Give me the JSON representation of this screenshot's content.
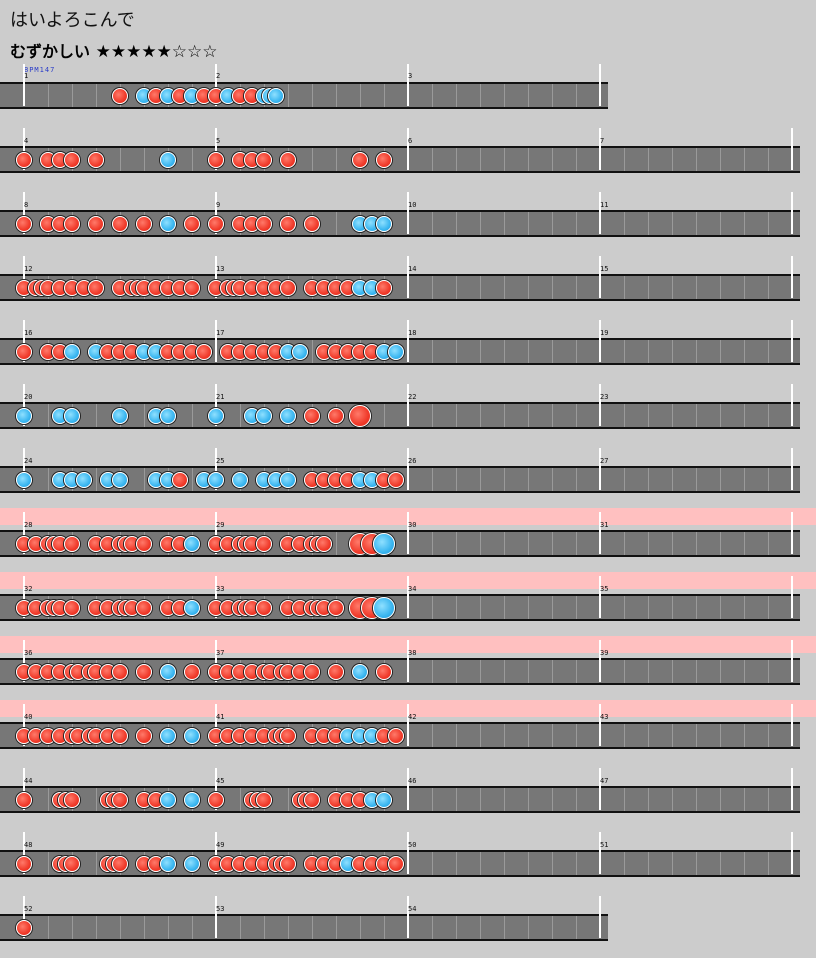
{
  "song": {
    "title": "はいよろこんで",
    "difficulty_label": "むずかしい",
    "stars": "★★★★★☆☆☆"
  },
  "bpm_label": "BPM147",
  "colors": {
    "don": "#f03a2a",
    "ka": "#3ab6f0",
    "gogo": "#ffc0c0",
    "lane": "#777777",
    "background": "#cccccc"
  },
  "rows": [
    {
      "measures": [
        1,
        2,
        3
      ],
      "gogo": false,
      "notes": [
        [
          "d",
          8
        ],
        [
          "k",
          10
        ],
        [
          "d",
          11
        ],
        [
          "k",
          12
        ],
        [
          "d",
          13
        ],
        [
          "k",
          14
        ],
        [
          "d",
          15
        ],
        [
          "d",
          16
        ],
        [
          "k",
          17
        ],
        [
          "d",
          18
        ],
        [
          "d",
          19
        ],
        [
          "k",
          20
        ],
        [
          "k",
          20.5
        ],
        [
          "k",
          21
        ]
      ]
    },
    {
      "measures": [
        4,
        5,
        6,
        7
      ],
      "gogo": false,
      "notes": [
        [
          "d",
          0
        ],
        [
          "d",
          2
        ],
        [
          "d",
          3
        ],
        [
          "d",
          4
        ],
        [
          "d",
          6
        ],
        [
          "k",
          12
        ],
        [
          "d",
          16
        ],
        [
          "d",
          18
        ],
        [
          "d",
          19
        ],
        [
          "d",
          20
        ],
        [
          "d",
          22
        ],
        [
          "d",
          28
        ],
        [
          "d",
          30
        ]
      ]
    },
    {
      "measures": [
        8,
        9,
        10,
        11
      ],
      "gogo": false,
      "notes": [
        [
          "d",
          0
        ],
        [
          "d",
          2
        ],
        [
          "d",
          3
        ],
        [
          "d",
          4
        ],
        [
          "d",
          6
        ],
        [
          "d",
          8
        ],
        [
          "d",
          10
        ],
        [
          "k",
          12
        ],
        [
          "d",
          14
        ],
        [
          "d",
          16
        ],
        [
          "d",
          18
        ],
        [
          "d",
          19
        ],
        [
          "d",
          20
        ],
        [
          "d",
          22
        ],
        [
          "d",
          24
        ],
        [
          "k",
          28
        ],
        [
          "k",
          29
        ],
        [
          "k",
          30
        ]
      ]
    },
    {
      "measures": [
        12,
        13,
        14,
        15
      ],
      "gogo": false,
      "notes": [
        [
          "d",
          0
        ],
        [
          "d",
          1
        ],
        [
          "d",
          1.5
        ],
        [
          "d",
          2
        ],
        [
          "d",
          3
        ],
        [
          "d",
          4
        ],
        [
          "d",
          5
        ],
        [
          "d",
          6
        ],
        [
          "d",
          8
        ],
        [
          "d",
          9
        ],
        [
          "d",
          9.5
        ],
        [
          "d",
          10
        ],
        [
          "d",
          11
        ],
        [
          "d",
          12
        ],
        [
          "d",
          13
        ],
        [
          "d",
          14
        ],
        [
          "d",
          16
        ],
        [
          "d",
          17
        ],
        [
          "d",
          17.5
        ],
        [
          "d",
          18
        ],
        [
          "d",
          19
        ],
        [
          "d",
          20
        ],
        [
          "d",
          21
        ],
        [
          "d",
          22
        ],
        [
          "d",
          24
        ],
        [
          "d",
          25
        ],
        [
          "d",
          26
        ],
        [
          "d",
          27
        ],
        [
          "k",
          28
        ],
        [
          "k",
          29
        ],
        [
          "d",
          30
        ]
      ]
    },
    {
      "measures": [
        16,
        17,
        18,
        19
      ],
      "gogo": false,
      "notes": [
        [
          "d",
          0
        ],
        [
          "d",
          2
        ],
        [
          "d",
          3
        ],
        [
          "k",
          4
        ],
        [
          "k",
          6
        ],
        [
          "d",
          7
        ],
        [
          "d",
          8
        ],
        [
          "d",
          9
        ],
        [
          "k",
          10
        ],
        [
          "k",
          11
        ],
        [
          "d",
          12
        ],
        [
          "d",
          13
        ],
        [
          "d",
          14
        ],
        [
          "d",
          15
        ],
        [
          "d",
          17
        ],
        [
          "d",
          18
        ],
        [
          "d",
          19
        ],
        [
          "d",
          20
        ],
        [
          "d",
          21
        ],
        [
          "k",
          22
        ],
        [
          "k",
          23
        ],
        [
          "d",
          25
        ],
        [
          "d",
          26
        ],
        [
          "d",
          27
        ],
        [
          "d",
          28
        ],
        [
          "d",
          29
        ],
        [
          "k",
          30
        ],
        [
          "k",
          31
        ]
      ]
    },
    {
      "measures": [
        20,
        21,
        22,
        23
      ],
      "gogo": false,
      "notes": [
        [
          "k",
          0
        ],
        [
          "k",
          3
        ],
        [
          "k",
          4
        ],
        [
          "k",
          8
        ],
        [
          "k",
          11
        ],
        [
          "k",
          12
        ],
        [
          "k",
          16
        ],
        [
          "k",
          19
        ],
        [
          "k",
          20
        ],
        [
          "k",
          22
        ],
        [
          "d",
          24
        ],
        [
          "d",
          26
        ],
        [
          "D",
          28
        ]
      ]
    },
    {
      "measures": [
        24,
        25,
        26,
        27
      ],
      "gogo": false,
      "notes": [
        [
          "k",
          0
        ],
        [
          "k",
          3
        ],
        [
          "k",
          4
        ],
        [
          "k",
          5
        ],
        [
          "k",
          7
        ],
        [
          "k",
          8
        ],
        [
          "k",
          11
        ],
        [
          "k",
          12
        ],
        [
          "d",
          13
        ],
        [
          "k",
          15
        ],
        [
          "k",
          16
        ],
        [
          "k",
          18
        ],
        [
          "k",
          20
        ],
        [
          "k",
          21
        ],
        [
          "k",
          22
        ],
        [
          "d",
          24
        ],
        [
          "d",
          25
        ],
        [
          "d",
          26
        ],
        [
          "d",
          27
        ],
        [
          "k",
          28
        ],
        [
          "k",
          29
        ],
        [
          "d",
          30
        ],
        [
          "d",
          31
        ]
      ]
    },
    {
      "measures": [
        28,
        29,
        30,
        31
      ],
      "gogo": true,
      "notes": [
        [
          "d",
          0
        ],
        [
          "d",
          1
        ],
        [
          "d",
          2
        ],
        [
          "d",
          2.5
        ],
        [
          "d",
          3
        ],
        [
          "d",
          4
        ],
        [
          "d",
          6
        ],
        [
          "d",
          7
        ],
        [
          "d",
          8
        ],
        [
          "d",
          8.5
        ],
        [
          "d",
          9
        ],
        [
          "d",
          10
        ],
        [
          "d",
          12
        ],
        [
          "d",
          13
        ],
        [
          "k",
          14
        ],
        [
          "d",
          16
        ],
        [
          "d",
          17
        ],
        [
          "d",
          18
        ],
        [
          "d",
          18.5
        ],
        [
          "d",
          19
        ],
        [
          "d",
          20
        ],
        [
          "d",
          22
        ],
        [
          "d",
          23
        ],
        [
          "d",
          24
        ],
        [
          "d",
          24.5
        ],
        [
          "d",
          25
        ],
        [
          "D",
          28
        ],
        [
          "D",
          29
        ],
        [
          "K",
          30
        ]
      ]
    },
    {
      "measures": [
        32,
        33,
        34,
        35
      ],
      "gogo": true,
      "notes": [
        [
          "d",
          0
        ],
        [
          "d",
          1
        ],
        [
          "d",
          2
        ],
        [
          "d",
          2.5
        ],
        [
          "d",
          3
        ],
        [
          "d",
          4
        ],
        [
          "d",
          6
        ],
        [
          "d",
          7
        ],
        [
          "d",
          8
        ],
        [
          "d",
          8.5
        ],
        [
          "d",
          9
        ],
        [
          "d",
          10
        ],
        [
          "d",
          12
        ],
        [
          "d",
          13
        ],
        [
          "k",
          14
        ],
        [
          "d",
          16
        ],
        [
          "d",
          17
        ],
        [
          "d",
          18
        ],
        [
          "d",
          18.5
        ],
        [
          "d",
          19
        ],
        [
          "d",
          20
        ],
        [
          "d",
          22
        ],
        [
          "d",
          23
        ],
        [
          "d",
          24
        ],
        [
          "d",
          24.5
        ],
        [
          "d",
          25
        ],
        [
          "d",
          26
        ],
        [
          "D",
          28
        ],
        [
          "D",
          29
        ],
        [
          "K",
          30
        ]
      ]
    },
    {
      "measures": [
        36,
        37,
        38,
        39
      ],
      "gogo": true,
      "notes": [
        [
          "d",
          0
        ],
        [
          "d",
          1
        ],
        [
          "d",
          2
        ],
        [
          "d",
          3
        ],
        [
          "d",
          4
        ],
        [
          "d",
          4.5
        ],
        [
          "d",
          5.5
        ],
        [
          "d",
          6
        ],
        [
          "d",
          7
        ],
        [
          "d",
          8
        ],
        [
          "d",
          10
        ],
        [
          "k",
          12
        ],
        [
          "d",
          14
        ],
        [
          "d",
          16
        ],
        [
          "d",
          17
        ],
        [
          "d",
          18
        ],
        [
          "d",
          19
        ],
        [
          "d",
          20
        ],
        [
          "d",
          20.5
        ],
        [
          "d",
          21.5
        ],
        [
          "d",
          22
        ],
        [
          "d",
          23
        ],
        [
          "d",
          24
        ],
        [
          "d",
          26
        ],
        [
          "k",
          28
        ],
        [
          "d",
          30
        ]
      ]
    },
    {
      "measures": [
        40,
        41,
        42,
        43
      ],
      "gogo": true,
      "notes": [
        [
          "d",
          0
        ],
        [
          "d",
          1
        ],
        [
          "d",
          2
        ],
        [
          "d",
          3
        ],
        [
          "d",
          4
        ],
        [
          "d",
          4.5
        ],
        [
          "d",
          5.5
        ],
        [
          "d",
          6
        ],
        [
          "d",
          7
        ],
        [
          "d",
          8
        ],
        [
          "d",
          10
        ],
        [
          "k",
          12
        ],
        [
          "k",
          14
        ],
        [
          "d",
          16
        ],
        [
          "d",
          17
        ],
        [
          "d",
          18
        ],
        [
          "d",
          19
        ],
        [
          "d",
          20
        ],
        [
          "d",
          21
        ],
        [
          "d",
          21.5
        ],
        [
          "d",
          22
        ],
        [
          "d",
          24
        ],
        [
          "d",
          25
        ],
        [
          "d",
          26
        ],
        [
          "k",
          27
        ],
        [
          "k",
          28
        ],
        [
          "k",
          29
        ],
        [
          "d",
          30
        ],
        [
          "d",
          31
        ]
      ]
    },
    {
      "measures": [
        44,
        45,
        46,
        47
      ],
      "gogo": false,
      "notes": [
        [
          "d",
          0
        ],
        [
          "d",
          3
        ],
        [
          "d",
          3.5
        ],
        [
          "d",
          4
        ],
        [
          "d",
          7
        ],
        [
          "d",
          7.5
        ],
        [
          "d",
          8
        ],
        [
          "d",
          10
        ],
        [
          "d",
          11
        ],
        [
          "k",
          12
        ],
        [
          "k",
          14
        ],
        [
          "d",
          16
        ],
        [
          "d",
          19
        ],
        [
          "d",
          19.5
        ],
        [
          "d",
          20
        ],
        [
          "d",
          23
        ],
        [
          "d",
          23.5
        ],
        [
          "d",
          24
        ],
        [
          "d",
          26
        ],
        [
          "d",
          27
        ],
        [
          "d",
          28
        ],
        [
          "k",
          29
        ],
        [
          "k",
          30
        ]
      ]
    },
    {
      "measures": [
        48,
        49,
        50,
        51
      ],
      "gogo": false,
      "notes": [
        [
          "d",
          0
        ],
        [
          "d",
          3
        ],
        [
          "d",
          3.5
        ],
        [
          "d",
          4
        ],
        [
          "d",
          7
        ],
        [
          "d",
          7.5
        ],
        [
          "d",
          8
        ],
        [
          "d",
          10
        ],
        [
          "d",
          11
        ],
        [
          "k",
          12
        ],
        [
          "k",
          14
        ],
        [
          "d",
          16
        ],
        [
          "d",
          17
        ],
        [
          "d",
          18
        ],
        [
          "d",
          19
        ],
        [
          "d",
          20
        ],
        [
          "d",
          21
        ],
        [
          "d",
          21.5
        ],
        [
          "d",
          22
        ],
        [
          "d",
          24
        ],
        [
          "d",
          25
        ],
        [
          "d",
          26
        ],
        [
          "k",
          27
        ],
        [
          "d",
          28
        ],
        [
          "d",
          29
        ],
        [
          "d",
          30
        ],
        [
          "d",
          31
        ]
      ]
    },
    {
      "measures": [
        52,
        53,
        54
      ],
      "gogo": false,
      "notes": [
        [
          "d",
          0
        ]
      ]
    }
  ]
}
